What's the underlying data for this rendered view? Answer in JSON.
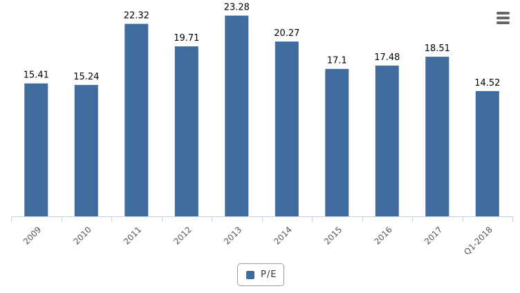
{
  "chart_data": {
    "type": "bar",
    "categories": [
      "2009",
      "2010",
      "2011",
      "2012",
      "2013",
      "2014",
      "2015",
      "2016",
      "2017",
      "Q1-2018"
    ],
    "series": [
      {
        "name": "P/E",
        "color": "#3f6b9d",
        "values": [
          15.41,
          15.24,
          22.32,
          19.71,
          23.28,
          20.27,
          17.1,
          17.48,
          18.51,
          14.52
        ],
        "labels": [
          "15.41",
          "15.24",
          "22.32",
          "19.71",
          "23.28",
          "20.27",
          "17.1",
          "17.48",
          "18.51",
          "14.52"
        ]
      }
    ],
    "ylim": [
      0,
      25
    ],
    "grid": false,
    "y_axis_visible": false,
    "data_labels": true,
    "legend_position": "bottom-center",
    "title": "",
    "xlabel": "",
    "ylabel": ""
  },
  "legend": {
    "label": "P/E",
    "color": "#3f6b9d"
  },
  "menu": {
    "icon": "hamburger-menu-icon"
  }
}
